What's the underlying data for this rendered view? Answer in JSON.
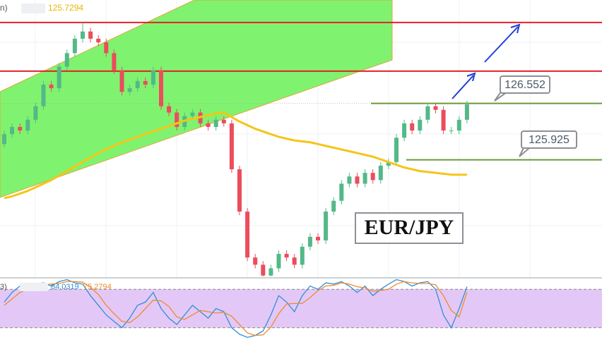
{
  "chart_data": [
    {
      "type": "candlestick",
      "title": "EUR/JPY",
      "header": "n)",
      "header_value": 125.7294,
      "ylim": [
        124.63,
        127.7
      ],
      "open": [
        126.1,
        126.21,
        126.29,
        126.25,
        126.37,
        126.52,
        126.76,
        126.72,
        126.96,
        127.11,
        127.27,
        127.35,
        127.27,
        127.23,
        127.11,
        126.92,
        126.68,
        126.72,
        126.8,
        126.76,
        126.92,
        126.52,
        126.45,
        126.29,
        126.41,
        126.45,
        126.33,
        126.29,
        126.37,
        126.33,
        125.82,
        125.35,
        124.84,
        124.76,
        124.64,
        124.72,
        124.88,
        124.84,
        124.76,
        124.96,
        125.07,
        125.03,
        125.35,
        125.47,
        125.66,
        125.74,
        125.66,
        125.78,
        125.7,
        125.86,
        125.9,
        126.17,
        126.33,
        126.25,
        126.37,
        126.52,
        126.48,
        126.25,
        126.25,
        126.37
      ],
      "high": [
        126.25,
        126.33,
        126.33,
        126.41,
        126.56,
        126.8,
        126.8,
        127.0,
        127.15,
        127.31,
        127.45,
        127.39,
        127.31,
        127.27,
        127.15,
        126.96,
        126.76,
        126.84,
        126.84,
        126.96,
        126.96,
        126.56,
        126.49,
        126.45,
        126.49,
        126.49,
        126.37,
        126.41,
        126.41,
        126.37,
        125.86,
        125.39,
        124.88,
        124.8,
        124.76,
        124.92,
        124.92,
        124.88,
        125.0,
        125.11,
        125.11,
        125.39,
        125.51,
        125.7,
        125.78,
        125.78,
        125.82,
        125.82,
        125.9,
        125.94,
        126.21,
        126.37,
        126.37,
        126.41,
        126.56,
        126.56,
        126.52,
        126.29,
        126.41,
        126.58
      ],
      "low": [
        126.06,
        126.17,
        126.21,
        126.21,
        126.33,
        126.48,
        126.68,
        126.68,
        126.92,
        127.07,
        127.23,
        127.23,
        127.19,
        127.07,
        126.88,
        126.64,
        126.64,
        126.68,
        126.72,
        126.72,
        126.48,
        126.41,
        126.25,
        126.25,
        126.37,
        126.29,
        126.25,
        126.25,
        126.29,
        125.78,
        125.31,
        124.8,
        124.72,
        124.63,
        124.63,
        124.68,
        124.8,
        124.72,
        124.72,
        124.92,
        124.99,
        124.99,
        125.31,
        125.43,
        125.62,
        125.62,
        125.62,
        125.66,
        125.66,
        125.82,
        125.86,
        126.13,
        126.21,
        126.21,
        126.33,
        126.44,
        126.21,
        126.21,
        126.21,
        126.33
      ],
      "close": [
        126.21,
        126.29,
        126.25,
        126.37,
        126.52,
        126.76,
        126.72,
        126.96,
        127.11,
        127.27,
        127.35,
        127.27,
        127.23,
        127.11,
        126.92,
        126.68,
        126.72,
        126.8,
        126.76,
        126.92,
        126.52,
        126.45,
        126.29,
        126.41,
        126.45,
        126.33,
        126.29,
        126.37,
        126.33,
        125.82,
        125.35,
        124.84,
        124.76,
        124.64,
        124.72,
        124.88,
        124.84,
        124.76,
        124.96,
        125.07,
        125.03,
        125.35,
        125.47,
        125.66,
        125.74,
        125.66,
        125.78,
        125.7,
        125.86,
        125.9,
        126.17,
        126.33,
        126.25,
        126.37,
        126.52,
        126.48,
        126.25,
        126.25,
        126.37,
        126.54
      ],
      "up_color": "#53b987",
      "down_color": "#eb4d5c",
      "ma": {
        "color": "#f5c518",
        "values": [
          125.5,
          125.52,
          125.55,
          125.58,
          125.62,
          125.66,
          125.7,
          125.75,
          125.8,
          125.85,
          125.9,
          125.95,
          126.0,
          126.04,
          126.08,
          126.12,
          126.15,
          126.18,
          126.21,
          126.24,
          126.27,
          126.3,
          126.33,
          126.36,
          126.38,
          126.4,
          126.42,
          126.44,
          126.45,
          126.4,
          126.35,
          126.31,
          126.27,
          126.24,
          126.21,
          126.18,
          126.16,
          126.14,
          126.13,
          126.12,
          126.1,
          126.08,
          126.06,
          126.04,
          126.02,
          126.0,
          125.98,
          125.96,
          125.93,
          125.9,
          125.87,
          125.84,
          125.82,
          125.8,
          125.79,
          125.78,
          125.77,
          125.76,
          125.76,
          125.76
        ]
      },
      "resistance": {
        "color": "#e3202a",
        "values": [
          127.45,
          126.91
        ]
      },
      "support": {
        "color": "#6a9a3a",
        "values": [
          126.552,
          125.925
        ]
      }
    },
    {
      "type": "line",
      "header": "3)",
      "ylim": [
        0,
        100
      ],
      "bands": [
        20,
        80
      ],
      "band_color": "#e3c8f7",
      "series": [
        {
          "color": "#2f8fd8",
          "last_value": 84.0319,
          "values": [
            60,
            75,
            85,
            80,
            88,
            90,
            85,
            92,
            95,
            90,
            88,
            70,
            55,
            40,
            30,
            20,
            35,
            55,
            60,
            75,
            50,
            35,
            25,
            40,
            55,
            45,
            35,
            50,
            45,
            20,
            10,
            5,
            8,
            15,
            40,
            70,
            60,
            45,
            70,
            85,
            80,
            90,
            88,
            92,
            85,
            75,
            85,
            70,
            80,
            88,
            95,
            92,
            85,
            90,
            92,
            80,
            40,
            20,
            50,
            84.03
          ]
        },
        {
          "color": "#f08a2c",
          "last_value": 75.2794,
          "values": [
            55,
            65,
            75,
            80,
            83,
            87,
            88,
            89,
            92,
            92,
            91,
            83,
            72,
            55,
            42,
            30,
            28,
            37,
            50,
            63,
            62,
            53,
            37,
            33,
            40,
            47,
            45,
            43,
            44,
            38,
            25,
            12,
            8,
            9,
            21,
            42,
            57,
            58,
            58,
            67,
            78,
            85,
            86,
            90,
            88,
            84,
            82,
            77,
            78,
            80,
            88,
            92,
            90,
            89,
            89,
            87,
            70,
            47,
            37,
            75.28
          ]
        }
      ]
    }
  ]
}
